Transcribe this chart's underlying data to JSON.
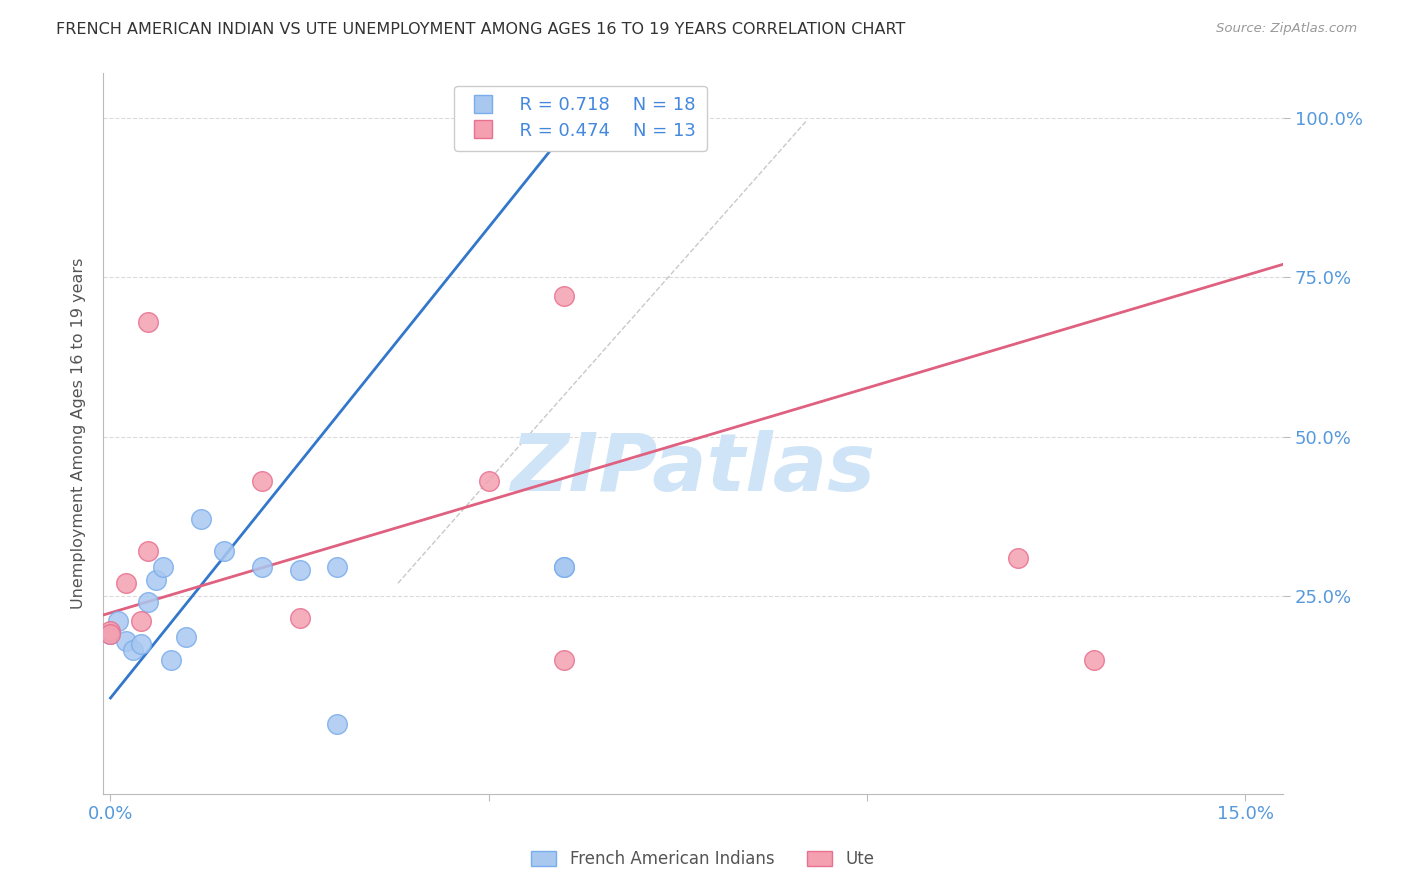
{
  "title": "FRENCH AMERICAN INDIAN VS UTE UNEMPLOYMENT AMONG AGES 16 TO 19 YEARS CORRELATION CHART",
  "source": "Source: ZipAtlas.com",
  "ylabel": "Unemployment Among Ages 16 to 19 years",
  "xmin": -0.001,
  "xmax": 0.155,
  "ymin": -0.06,
  "ymax": 1.07,
  "blue_label": "French American Indians",
  "pink_label": "Ute",
  "blue_R": "0.718",
  "blue_N": "18",
  "pink_R": "0.474",
  "pink_N": "13",
  "blue_color": "#a8c8f0",
  "pink_color": "#f4a0b0",
  "blue_edge_color": "#7aadec",
  "pink_edge_color": "#e87090",
  "blue_line_color": "#3377cc",
  "pink_line_color": "#e06080",
  "grid_color": "#cccccc",
  "axis_color": "#bbbbbb",
  "tick_color": "#5599dd",
  "title_color": "#333333",
  "watermark_color": "#d0e4f8",
  "blue_scatter_x": [
    0.0,
    0.001,
    0.002,
    0.003,
    0.004,
    0.005,
    0.006,
    0.007,
    0.008,
    0.01,
    0.012,
    0.015,
    0.02,
    0.025,
    0.03,
    0.06,
    0.06,
    0.03
  ],
  "blue_scatter_y": [
    0.19,
    0.21,
    0.18,
    0.165,
    0.175,
    0.24,
    0.275,
    0.295,
    0.15,
    0.185,
    0.37,
    0.32,
    0.295,
    0.29,
    0.295,
    0.295,
    0.295,
    0.05
  ],
  "pink_scatter_x": [
    0.0,
    0.002,
    0.004,
    0.005,
    0.005,
    0.02,
    0.025,
    0.05,
    0.06,
    0.12,
    0.13,
    0.06,
    0.0
  ],
  "pink_scatter_y": [
    0.195,
    0.27,
    0.21,
    0.32,
    0.68,
    0.43,
    0.215,
    0.43,
    0.72,
    0.31,
    0.15,
    0.15,
    0.19
  ],
  "blue_trendline_x": [
    0.0,
    0.063
  ],
  "blue_trendline_y": [
    0.09,
    1.02
  ],
  "pink_trendline_x": [
    -0.001,
    0.155
  ],
  "pink_trendline_y": [
    0.22,
    0.77
  ],
  "ref_line_x": [
    0.038,
    0.092
  ],
  "ref_line_y": [
    0.27,
    0.995
  ]
}
